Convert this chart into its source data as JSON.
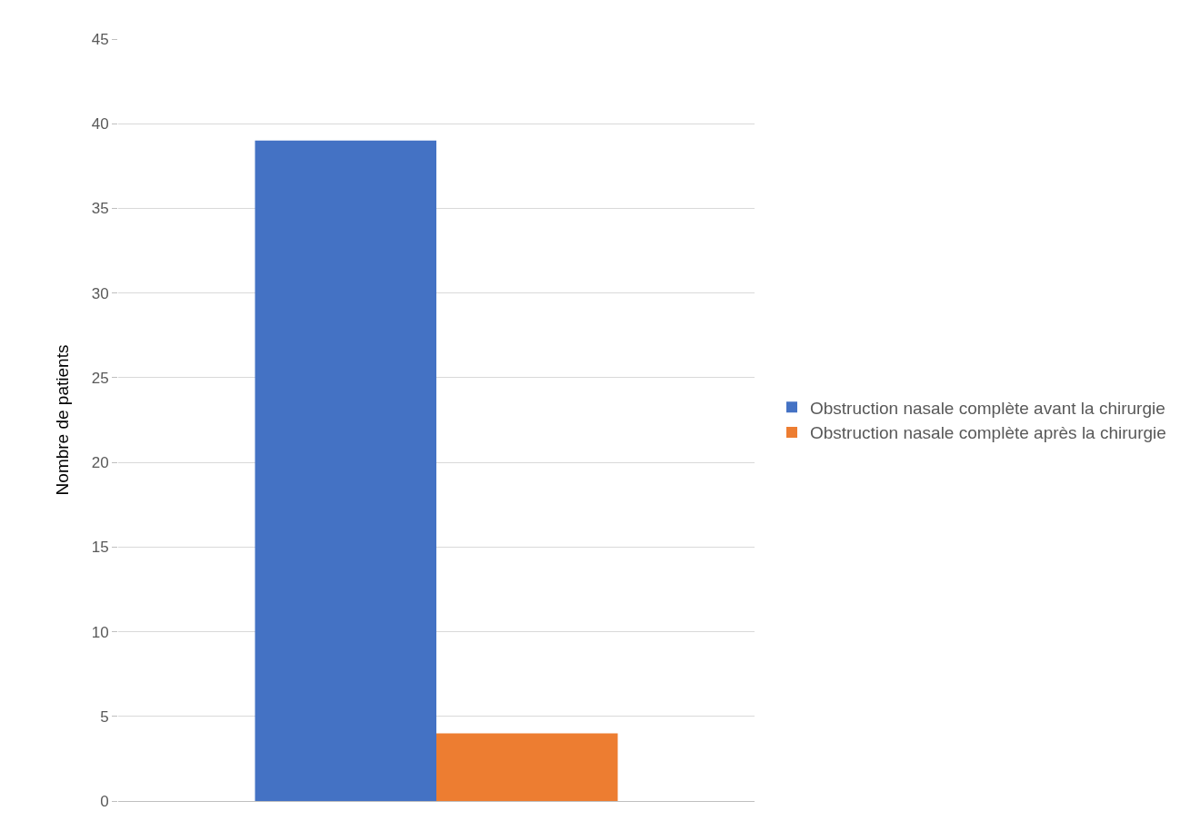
{
  "chart_data": {
    "type": "bar",
    "ylabel": "Nombre de patients",
    "categories": [
      null
    ],
    "series": [
      {
        "name": "Obstruction nasale complète avant la chirurgie",
        "color": "#4472c4",
        "values": [
          39
        ]
      },
      {
        "name": "Obstruction nasale complète après la chirurgie",
        "color": "#ed7d31",
        "values": [
          4
        ]
      }
    ],
    "ylim": [
      0,
      45
    ],
    "yticks": [
      0,
      5,
      10,
      15,
      20,
      25,
      30,
      35,
      40,
      45
    ],
    "grid": "y",
    "legend": "right"
  }
}
